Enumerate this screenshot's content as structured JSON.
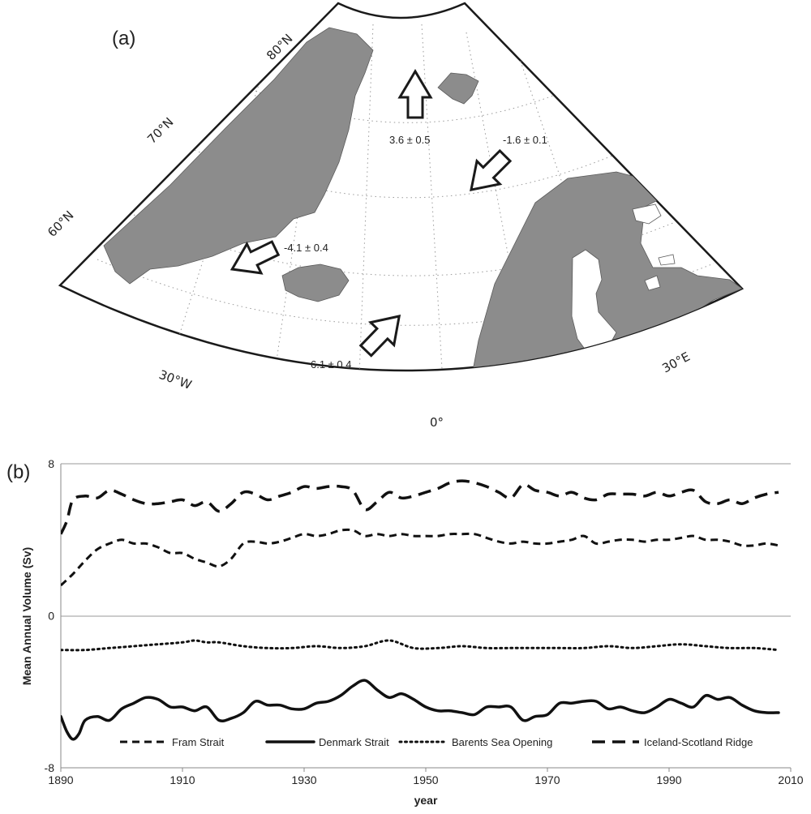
{
  "map": {
    "panel_label": "(a)",
    "lat_labels": [
      "80°N",
      "70°N",
      "60°N"
    ],
    "lon_labels": [
      "30°W",
      "0°",
      "30°E"
    ],
    "fluxes": [
      {
        "id": "fram",
        "text": "3.6 ± 0.5"
      },
      {
        "id": "barents",
        "text": "-1.6 ± 0.1"
      },
      {
        "id": "denmark",
        "text": "-4.1 ± 0.4"
      },
      {
        "id": "iceland_scotland",
        "text": "6.1 ± 0.4"
      }
    ],
    "colors": {
      "land": "#8c8c8c",
      "ocean": "#ffffff",
      "grid": "#999999"
    }
  },
  "chart_data": {
    "type": "line",
    "panel_label": "(b)",
    "xlabel": "year",
    "ylabel": "Mean Annual Volume (Sv)",
    "xlim": [
      1890,
      2010
    ],
    "ylim": [
      -8,
      8
    ],
    "xticks": [
      1890,
      1910,
      1930,
      1950,
      1970,
      1990,
      2010
    ],
    "yticks": [
      8,
      0,
      -8
    ],
    "grid": "horizontal lines at 8 and 0",
    "legend_position": "bottom",
    "series": [
      {
        "name": "Fram Strait",
        "style": "short-dash",
        "x": [
          1890,
          1892,
          1894,
          1896,
          1898,
          1900,
          1902,
          1904,
          1906,
          1908,
          1910,
          1912,
          1914,
          1916,
          1918,
          1920,
          1922,
          1924,
          1926,
          1928,
          1930,
          1932,
          1934,
          1936,
          1938,
          1940,
          1942,
          1944,
          1946,
          1948,
          1950,
          1952,
          1954,
          1956,
          1958,
          1960,
          1962,
          1964,
          1966,
          1968,
          1970,
          1972,
          1974,
          1976,
          1978,
          1980,
          1982,
          1984,
          1986,
          1988,
          1990,
          1992,
          1994,
          1996,
          1998,
          2000,
          2002,
          2004,
          2006,
          2008
        ],
        "values": [
          1.6,
          2.2,
          2.9,
          3.5,
          3.8,
          4.0,
          3.8,
          3.8,
          3.6,
          3.3,
          3.3,
          3.0,
          2.8,
          2.6,
          3.0,
          3.8,
          3.9,
          3.8,
          3.9,
          4.1,
          4.3,
          4.2,
          4.3,
          4.5,
          4.5,
          4.2,
          4.3,
          4.2,
          4.3,
          4.2,
          4.2,
          4.2,
          4.3,
          4.3,
          4.3,
          4.1,
          3.9,
          3.8,
          3.9,
          3.8,
          3.8,
          3.9,
          4.0,
          4.2,
          3.8,
          3.9,
          4.0,
          4.0,
          3.9,
          4.0,
          4.0,
          4.1,
          4.2,
          4.0,
          4.0,
          3.9,
          3.7,
          3.7,
          3.8,
          3.7
        ]
      },
      {
        "name": "Denmark Strait",
        "style": "solid",
        "x": [
          1890,
          1891,
          1892,
          1893,
          1894,
          1896,
          1898,
          1900,
          1902,
          1904,
          1906,
          1908,
          1910,
          1912,
          1914,
          1916,
          1918,
          1920,
          1922,
          1924,
          1926,
          1928,
          1930,
          1932,
          1934,
          1936,
          1938,
          1940,
          1942,
          1944,
          1946,
          1948,
          1950,
          1952,
          1954,
          1956,
          1958,
          1960,
          1962,
          1964,
          1966,
          1968,
          1970,
          1972,
          1974,
          1976,
          1978,
          1980,
          1982,
          1984,
          1986,
          1988,
          1990,
          1992,
          1994,
          1996,
          1998,
          2000,
          2002,
          2004,
          2006,
          2008
        ],
        "values": [
          -5.3,
          -6.1,
          -6.5,
          -6.2,
          -5.5,
          -5.3,
          -5.5,
          -4.9,
          -4.6,
          -4.3,
          -4.4,
          -4.8,
          -4.8,
          -5.0,
          -4.8,
          -5.5,
          -5.4,
          -5.1,
          -4.5,
          -4.7,
          -4.7,
          -4.9,
          -4.9,
          -4.6,
          -4.5,
          -4.2,
          -3.7,
          -3.4,
          -3.9,
          -4.3,
          -4.1,
          -4.4,
          -4.8,
          -5.0,
          -5.0,
          -5.1,
          -5.2,
          -4.8,
          -4.8,
          -4.8,
          -5.5,
          -5.3,
          -5.2,
          -4.6,
          -4.6,
          -4.5,
          -4.5,
          -4.9,
          -4.8,
          -5.0,
          -5.1,
          -4.8,
          -4.4,
          -4.6,
          -4.8,
          -4.2,
          -4.4,
          -4.3,
          -4.7,
          -5.0,
          -5.1,
          -5.1
        ]
      },
      {
        "name": "Barents Sea Opening",
        "style": "dotted",
        "x": [
          1890,
          1894,
          1898,
          1902,
          1906,
          1910,
          1912,
          1914,
          1916,
          1920,
          1924,
          1928,
          1932,
          1936,
          1940,
          1944,
          1948,
          1952,
          1956,
          1960,
          1964,
          1968,
          1972,
          1976,
          1980,
          1984,
          1988,
          1992,
          1996,
          2000,
          2004,
          2008
        ],
        "values": [
          -1.8,
          -1.8,
          -1.7,
          -1.6,
          -1.5,
          -1.4,
          -1.3,
          -1.4,
          -1.4,
          -1.6,
          -1.7,
          -1.7,
          -1.6,
          -1.7,
          -1.6,
          -1.3,
          -1.7,
          -1.7,
          -1.6,
          -1.7,
          -1.7,
          -1.7,
          -1.7,
          -1.7,
          -1.6,
          -1.7,
          -1.6,
          -1.5,
          -1.6,
          -1.7,
          -1.7,
          -1.8
        ]
      },
      {
        "name": "Iceland-Scotland Ridge",
        "style": "long-dash",
        "x": [
          1890,
          1891,
          1892,
          1894,
          1896,
          1898,
          1900,
          1902,
          1904,
          1906,
          1908,
          1910,
          1912,
          1914,
          1916,
          1918,
          1920,
          1922,
          1924,
          1926,
          1928,
          1930,
          1932,
          1934,
          1936,
          1938,
          1940,
          1942,
          1944,
          1946,
          1948,
          1950,
          1952,
          1954,
          1956,
          1958,
          1960,
          1962,
          1964,
          1966,
          1968,
          1970,
          1972,
          1974,
          1976,
          1978,
          1980,
          1982,
          1984,
          1986,
          1988,
          1990,
          1992,
          1994,
          1996,
          1998,
          2000,
          2002,
          2004,
          2006,
          2008
        ],
        "values": [
          4.3,
          5.0,
          6.1,
          6.3,
          6.2,
          6.6,
          6.4,
          6.1,
          5.9,
          5.9,
          6.0,
          6.1,
          5.8,
          6.0,
          5.5,
          5.9,
          6.5,
          6.4,
          6.1,
          6.3,
          6.5,
          6.8,
          6.7,
          6.8,
          6.8,
          6.6,
          5.6,
          6.0,
          6.5,
          6.2,
          6.3,
          6.5,
          6.7,
          7.0,
          7.1,
          7.0,
          6.8,
          6.5,
          6.2,
          6.9,
          6.6,
          6.5,
          6.3,
          6.5,
          6.2,
          6.1,
          6.4,
          6.4,
          6.4,
          6.3,
          6.5,
          6.3,
          6.5,
          6.6,
          6.0,
          5.9,
          6.1,
          5.9,
          6.2,
          6.4,
          6.5
        ]
      }
    ]
  }
}
